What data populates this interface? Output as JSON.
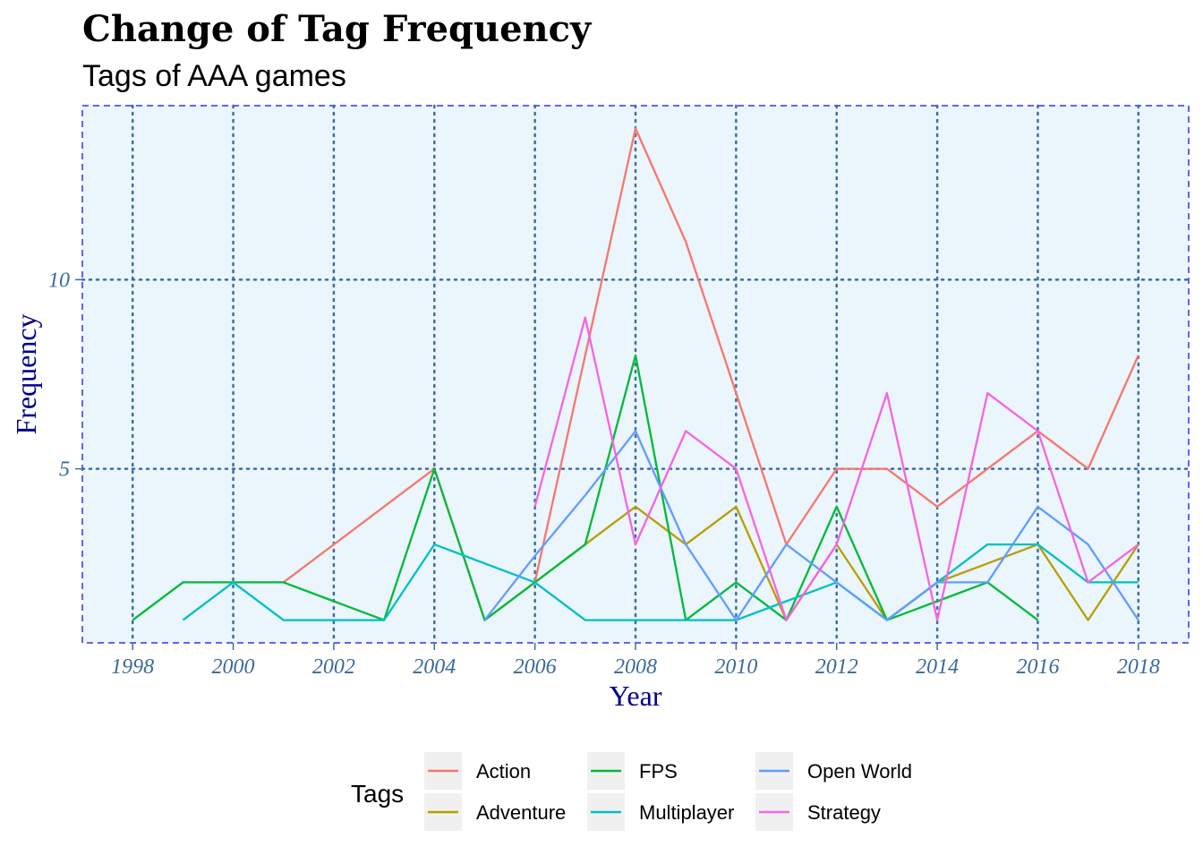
{
  "chart_data": {
    "type": "line",
    "title": "Change of Tag Frequency",
    "subtitle": "Tags of AAA games",
    "xlabel": "Year",
    "ylabel": "Frequency",
    "xlim": [
      1997,
      2019
    ],
    "ylim": [
      0.4,
      14.6
    ],
    "x_ticks": [
      1998,
      2000,
      2002,
      2004,
      2006,
      2008,
      2010,
      2012,
      2014,
      2016,
      2018
    ],
    "y_ticks": [
      5,
      10
    ],
    "grid": true,
    "legend_title": "Tags",
    "legend_position": "bottom",
    "series": [
      {
        "name": "Action",
        "color": "#F8766D",
        "x": [
          2001,
          2004,
          2005,
          2006,
          2007,
          2008,
          2009,
          2010,
          2011,
          2012,
          2013,
          2014,
          2015,
          2016,
          2017,
          2018
        ],
        "y": [
          2,
          5,
          1,
          2,
          8,
          14,
          11,
          7,
          3,
          5,
          5,
          4,
          5,
          6,
          5,
          8
        ]
      },
      {
        "name": "Adventure",
        "color": "#B79F00",
        "x": [
          2006,
          2007,
          2008,
          2009,
          2010,
          2011,
          2012,
          2013,
          2014,
          2015,
          2016,
          2017,
          2018
        ],
        "y": [
          2,
          3,
          4,
          3,
          4,
          1,
          3,
          1,
          2,
          2.5,
          3,
          1,
          3
        ]
      },
      {
        "name": "FPS",
        "color": "#00BA38",
        "x": [
          1998,
          1999,
          2000,
          2001,
          2002,
          2003,
          2004,
          2005,
          2006,
          2007,
          2008,
          2009,
          2010,
          2011,
          2012,
          2013,
          2014,
          2015,
          2016
        ],
        "y": [
          1,
          2,
          2,
          2,
          1.5,
          1,
          5,
          1,
          2,
          3,
          8,
          1,
          2,
          1,
          4,
          1,
          1.5,
          2,
          1
        ]
      },
      {
        "name": "Multiplayer",
        "color": "#00BFC4",
        "x": [
          1999,
          2000,
          2001,
          2002,
          2003,
          2004,
          2005,
          2006,
          2007,
          2008,
          2009,
          2010,
          2011,
          2012,
          2013,
          2014,
          2015,
          2016,
          2017,
          2018
        ],
        "y": [
          1,
          2,
          1,
          1,
          1,
          3,
          2.5,
          2,
          1,
          1,
          1,
          1,
          1.5,
          2,
          1,
          2,
          3,
          3,
          2,
          2
        ]
      },
      {
        "name": "Open World",
        "color": "#619CFF",
        "x": [
          2005,
          2006,
          2007,
          2008,
          2009,
          2010,
          2011,
          2012,
          2013,
          2014,
          2015,
          2016,
          2017,
          2018
        ],
        "y": [
          1,
          2.7,
          4.3,
          6,
          3,
          1,
          3,
          2,
          1,
          2,
          2,
          4,
          3,
          1
        ]
      },
      {
        "name": "Strategy",
        "color": "#F564E3",
        "x": [
          2006,
          2007,
          2008,
          2009,
          2010,
          2011,
          2012,
          2013,
          2014,
          2015,
          2016,
          2017,
          2018
        ],
        "y": [
          4,
          9,
          3,
          6,
          5,
          1,
          3,
          7,
          1,
          7,
          6,
          2,
          3
        ]
      }
    ]
  }
}
